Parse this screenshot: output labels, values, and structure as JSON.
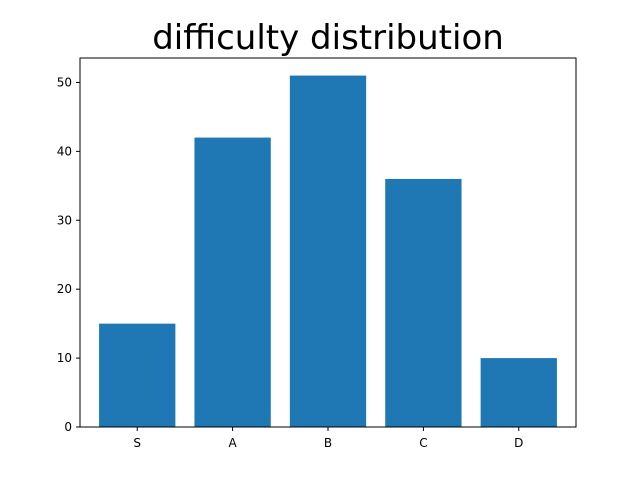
{
  "chart_data": {
    "type": "bar",
    "title": "difficulty distribution",
    "xlabel": "",
    "ylabel": "",
    "categories": [
      "S",
      "A",
      "B",
      "C",
      "D"
    ],
    "values": [
      15,
      42,
      51,
      36,
      10
    ],
    "ylim": [
      0,
      53.55
    ],
    "yticks": [
      0,
      10,
      20,
      30,
      40,
      50
    ],
    "grid": false,
    "colors": {
      "bar": "#1f77b4",
      "axes": "#000000",
      "background": "#ffffff"
    }
  }
}
